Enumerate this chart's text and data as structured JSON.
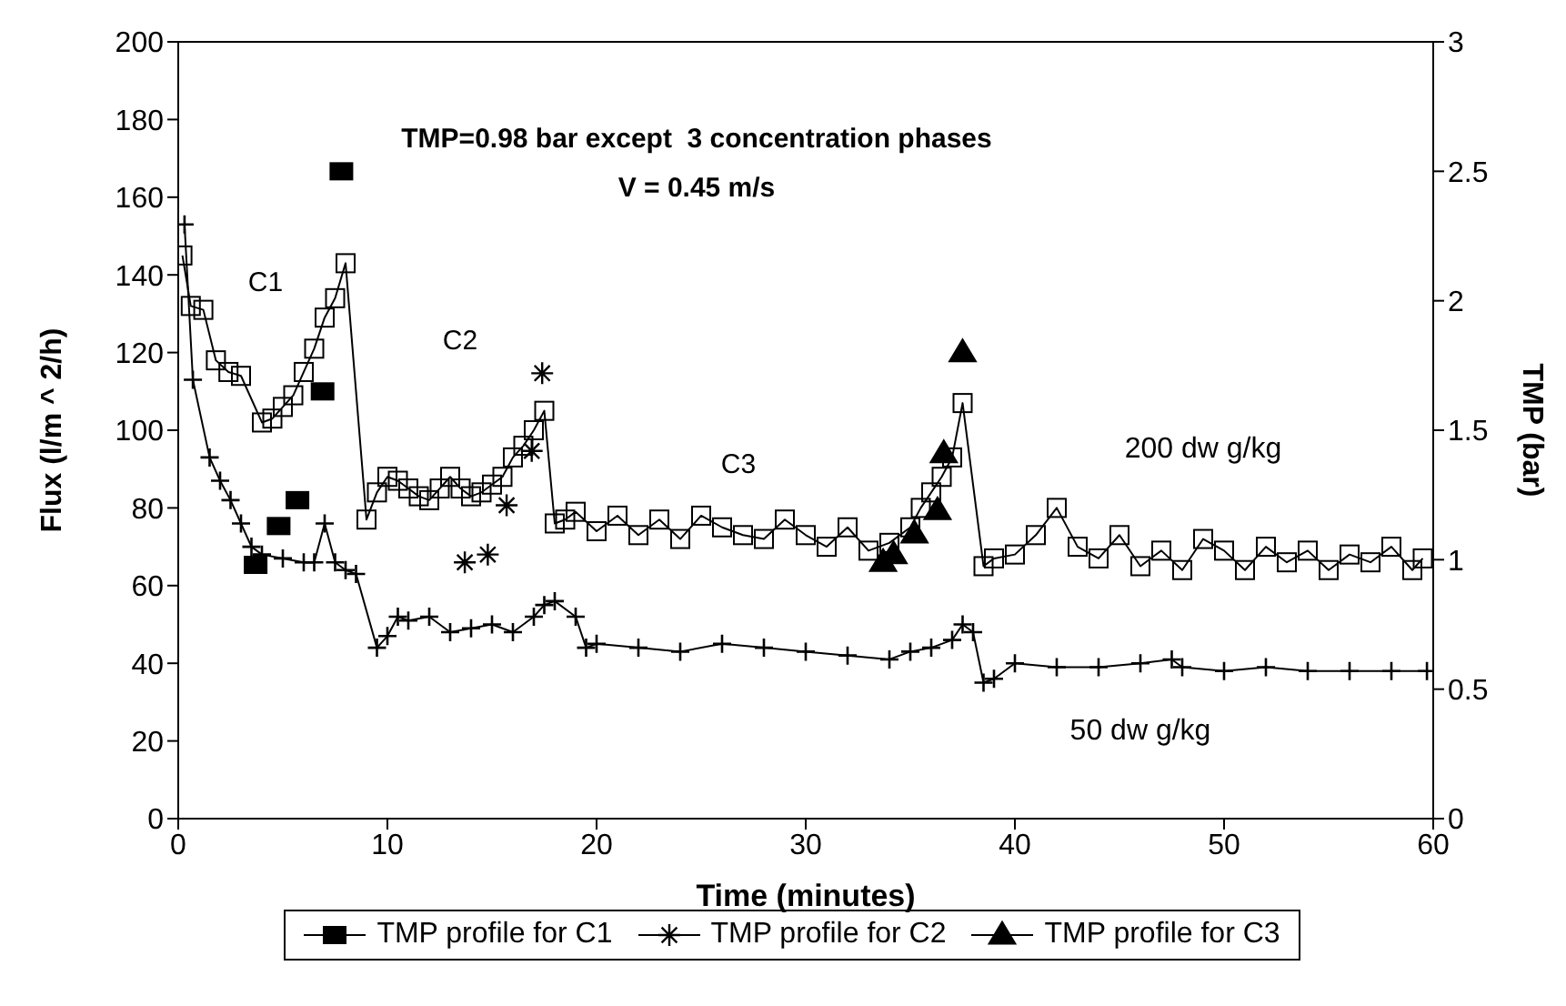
{
  "chart_data": {
    "type": "line",
    "xlabel": "Time (minutes)",
    "ylabel": "Flux (l/m ^ 2/h)",
    "y2label": "TMP (bar)",
    "annotations": [
      "TMP=0.98 bar except  3 concentration phases",
      "V = 0.45 m/s",
      "C1",
      "C2",
      "C3"
    ],
    "xlim": [
      0,
      60
    ],
    "xticks": [
      0,
      10,
      20,
      30,
      40,
      50,
      60
    ],
    "ylim": [
      0,
      200
    ],
    "yticks": [
      0,
      20,
      40,
      60,
      80,
      100,
      120,
      140,
      160,
      180,
      200
    ],
    "y2lim": [
      0,
      3
    ],
    "y2ticks": [
      0,
      0.5,
      1,
      1.5,
      2,
      2.5,
      3
    ],
    "legend": "bottom",
    "series": [
      {
        "name": "200 dw g/kg",
        "marker": "square",
        "color": "#000000",
        "x": [
          0.2,
          0.6,
          1.2,
          1.8,
          2.4,
          3,
          4,
          4.5,
          5,
          5.5,
          6,
          6.5,
          7,
          7.5,
          8,
          9,
          9.5,
          10,
          10.5,
          11,
          11.5,
          12,
          12.5,
          13,
          13.5,
          14,
          14.5,
          15,
          15.5,
          16,
          16.5,
          17,
          17.5,
          18,
          18.5,
          19,
          20,
          21,
          22,
          23,
          24,
          25,
          26,
          27,
          28,
          29,
          30,
          31,
          32,
          33,
          34,
          35,
          35.5,
          36,
          36.5,
          37,
          37.5,
          38.5,
          39,
          40,
          41,
          42,
          43,
          44,
          45,
          46,
          47,
          48,
          49,
          50,
          51,
          52,
          53,
          54,
          55,
          56,
          57,
          58,
          59,
          59.5
        ],
        "values": [
          145,
          132,
          131,
          118,
          115,
          114,
          102,
          103,
          106,
          109,
          115,
          121,
          129,
          134,
          143,
          77,
          84,
          88,
          87,
          85,
          83,
          82,
          85,
          88,
          85,
          83,
          84,
          86,
          88,
          93,
          96,
          100,
          105,
          76,
          77,
          79,
          74,
          78,
          73,
          77,
          72,
          78,
          75,
          73,
          72,
          77,
          73,
          70,
          75,
          69,
          71,
          75,
          80,
          84,
          88,
          93,
          107,
          65,
          67,
          68,
          73,
          80,
          70,
          67,
          73,
          65,
          69,
          64,
          72,
          69,
          64,
          70,
          66,
          69,
          64,
          68,
          66,
          70,
          64,
          67
        ]
      },
      {
        "name": "50 dw g/kg",
        "marker": "cross",
        "color": "#000000",
        "x": [
          0.3,
          0.7,
          1.5,
          2,
          2.5,
          3,
          3.5,
          4,
          5,
          6,
          6.5,
          7,
          7.5,
          8,
          8.5,
          9.5,
          10,
          10.5,
          11,
          12,
          13,
          14,
          15,
          16,
          17,
          17.5,
          18,
          19,
          19.5,
          20,
          22,
          24,
          26,
          28,
          30,
          32,
          34,
          35,
          36,
          37,
          37.5,
          38,
          38.5,
          39,
          40,
          42,
          44,
          46,
          47.5,
          48,
          50,
          52,
          54,
          56,
          58,
          59.7
        ],
        "values": [
          153,
          113,
          93,
          87,
          82,
          76,
          70,
          68,
          67,
          66,
          66,
          76,
          66,
          64,
          63,
          44,
          47,
          52,
          51,
          52,
          48,
          49,
          50,
          48,
          52,
          55,
          56,
          52,
          44,
          45,
          44,
          43,
          45,
          44,
          43,
          42,
          41,
          43,
          44,
          46,
          50,
          48,
          35,
          36,
          40,
          39,
          39,
          40,
          41,
          39,
          38,
          39,
          38,
          38,
          38,
          38
        ]
      },
      {
        "name": "TMP profile for C1",
        "type": "scatter",
        "axis": "y2",
        "marker": "square",
        "color": "#000000",
        "x": [
          3.7,
          4.8,
          5.7,
          6.9,
          7.8
        ],
        "values": [
          0.98,
          1.13,
          1.23,
          1.65,
          2.5
        ]
      },
      {
        "name": "TMP profile for C2",
        "type": "scatter",
        "axis": "y2",
        "marker": "cross",
        "color": "#000000",
        "x": [
          13.7,
          14.8,
          15.7,
          16.9,
          17.4
        ],
        "values": [
          0.99,
          1.02,
          1.21,
          1.42,
          1.72
        ]
      },
      {
        "name": "TMP profile for C3",
        "type": "scatter",
        "axis": "y2",
        "marker": "triangle",
        "color": "#000000",
        "x": [
          33.7,
          34.2,
          35.2,
          36.3,
          36.6,
          37.5
        ],
        "values": [
          0.99,
          1.02,
          1.1,
          1.19,
          1.41,
          1.8
        ]
      }
    ]
  }
}
